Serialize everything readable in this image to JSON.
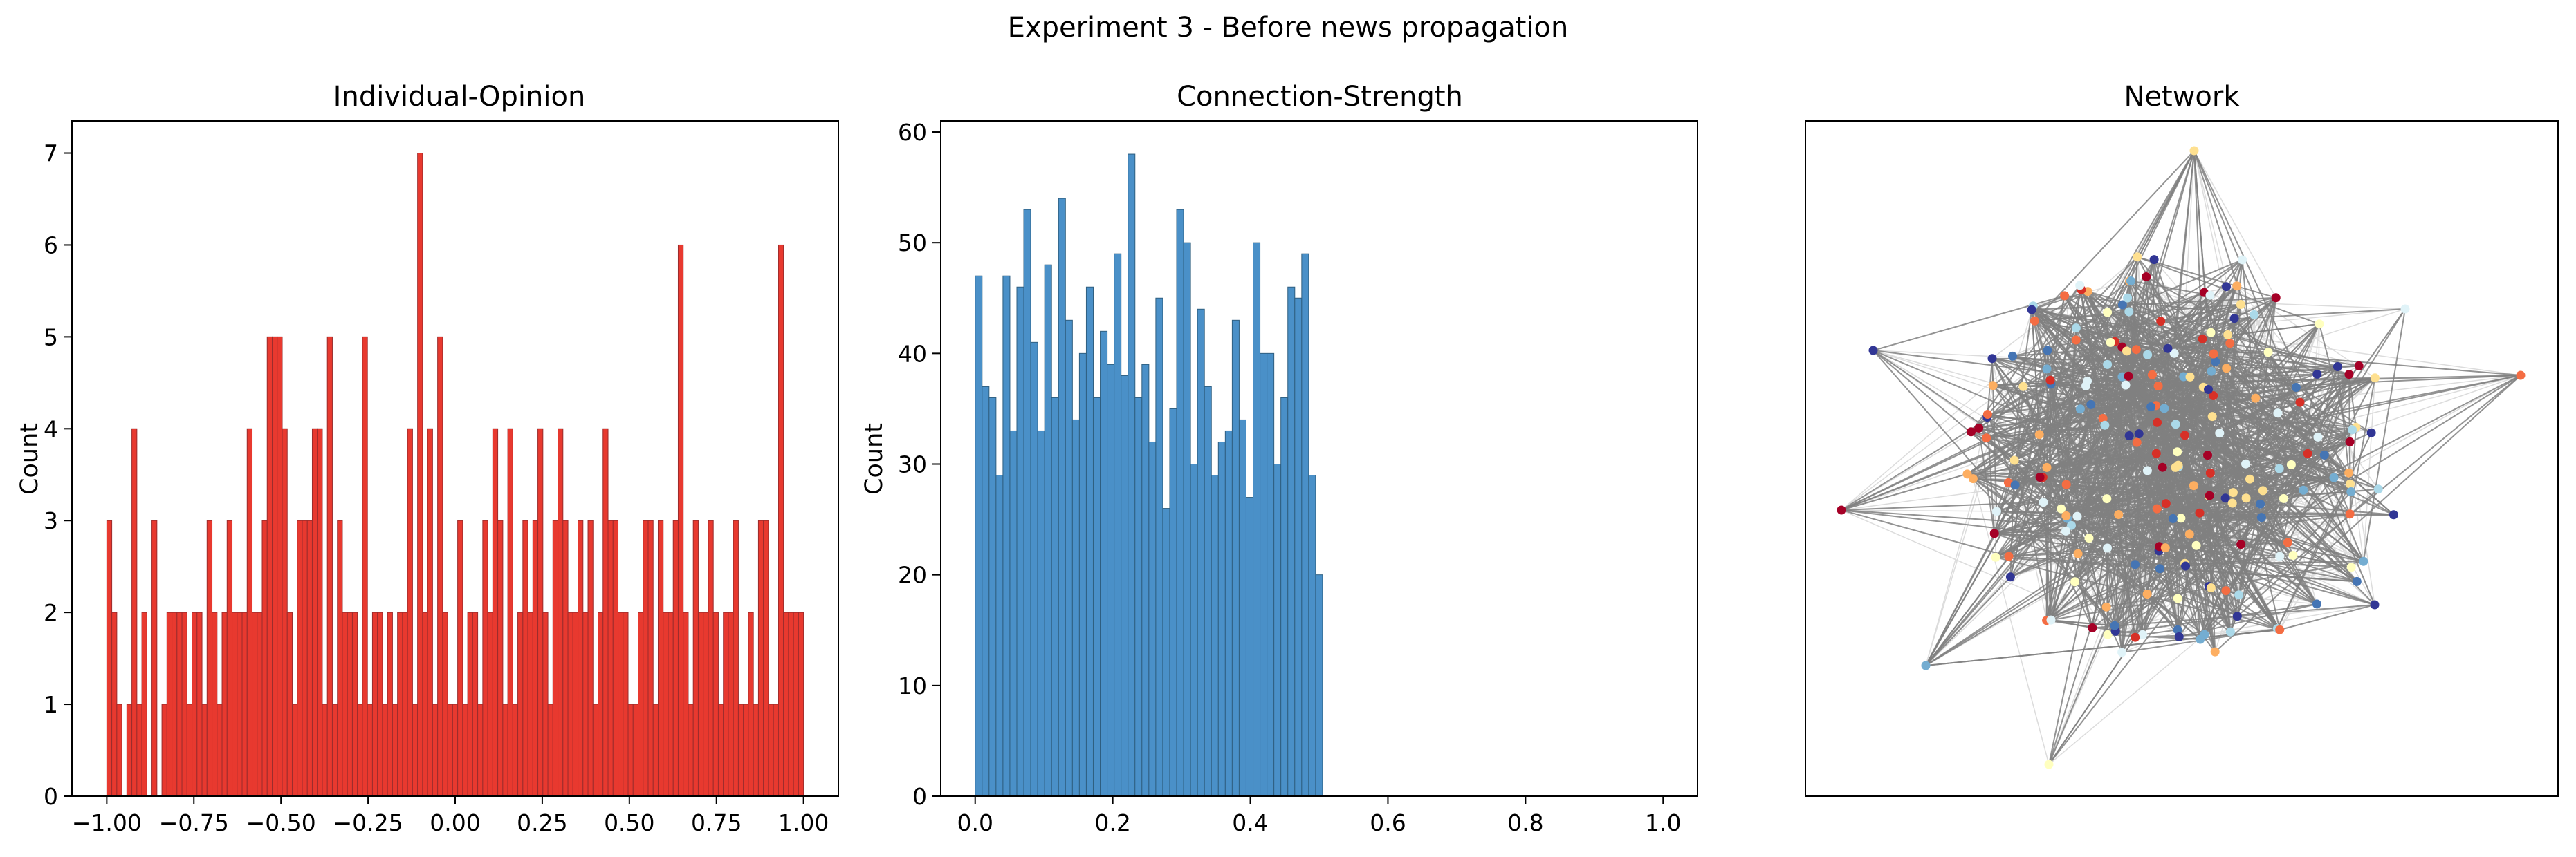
{
  "figure": {
    "suptitle": "Experiment 3 - Before news propagation"
  },
  "chart_data": [
    {
      "type": "bar",
      "title": "Individual-Opinion",
      "xlabel": "",
      "ylabel": "Count",
      "xlim": [
        -1.1,
        1.1
      ],
      "ylim": [
        0,
        7.35
      ],
      "xticks": [
        -1.0,
        -0.75,
        -0.5,
        -0.25,
        0.0,
        0.25,
        0.5,
        0.75,
        1.0
      ],
      "xtick_labels": [
        "−1.00",
        "−0.75",
        "−0.50",
        "−0.25",
        "0.00",
        "0.25",
        "0.50",
        "0.75",
        "1.00"
      ],
      "yticks": [
        0,
        1,
        2,
        3,
        4,
        5,
        6,
        7
      ],
      "ytick_labels": [
        "0",
        "1",
        "2",
        "3",
        "4",
        "5",
        "6",
        "7"
      ],
      "bin_range": [
        -1.0,
        1.0
      ],
      "values": [
        3,
        2,
        1,
        0,
        1,
        4,
        1,
        2,
        0,
        3,
        0,
        1,
        2,
        2,
        2,
        2,
        1,
        2,
        2,
        1,
        3,
        2,
        1,
        2,
        3,
        2,
        2,
        2,
        4,
        2,
        2,
        3,
        5,
        5,
        5,
        4,
        2,
        1,
        3,
        3,
        3,
        4,
        4,
        1,
        5,
        1,
        3,
        2,
        2,
        2,
        1,
        5,
        1,
        2,
        2,
        1,
        2,
        1,
        2,
        2,
        4,
        1,
        7,
        2,
        4,
        1,
        5,
        2,
        1,
        1,
        3,
        1,
        2,
        2,
        1,
        3,
        2,
        4,
        3,
        1,
        4,
        1,
        2,
        3,
        2,
        3,
        4,
        2,
        1,
        3,
        4,
        3,
        2,
        2,
        3,
        2,
        3,
        1,
        2,
        4,
        3,
        3,
        2,
        2,
        1,
        1,
        2,
        3,
        3,
        1,
        3,
        2,
        2,
        3,
        6,
        2,
        1,
        3,
        2,
        2,
        3,
        2,
        1,
        2,
        2,
        3,
        1,
        1,
        2,
        1,
        3,
        3,
        1,
        1,
        6,
        2,
        2,
        2,
        2
      ],
      "color": "#e8392f",
      "edge_color": "#9b2c2c",
      "grid": false
    },
    {
      "type": "bar",
      "title": "Connection-Strength",
      "xlabel": "",
      "ylabel": "Count",
      "xlim": [
        -0.05,
        1.05
      ],
      "ylim": [
        0,
        61
      ],
      "xticks": [
        0.0,
        0.2,
        0.4,
        0.6,
        0.8,
        1.0
      ],
      "xtick_labels": [
        "0.0",
        "0.2",
        "0.4",
        "0.6",
        "0.8",
        "1.0"
      ],
      "yticks": [
        0,
        10,
        20,
        30,
        40,
        50,
        60
      ],
      "ytick_labels": [
        "0",
        "10",
        "20",
        "30",
        "40",
        "50",
        "60"
      ],
      "bin_range": [
        0.0,
        0.505
      ],
      "values": [
        47,
        37,
        36,
        29,
        47,
        33,
        46,
        53,
        41,
        33,
        48,
        36,
        54,
        43,
        34,
        40,
        46,
        36,
        42,
        39,
        49,
        38,
        58,
        36,
        39,
        32,
        45,
        26,
        35,
        53,
        50,
        30,
        44,
        37,
        29,
        32,
        33,
        43,
        34,
        27,
        50,
        40,
        40,
        30,
        36,
        46,
        45,
        49,
        29,
        20
      ],
      "color": "#4a90c8",
      "edge_color": "#2f5f80",
      "grid": false
    }
  ],
  "network": {
    "title": "Network",
    "node_palette": [
      "#a50026",
      "#d73027",
      "#f46d43",
      "#fdae61",
      "#fee090",
      "#ffffbf",
      "#e0f3f8",
      "#abd9e9",
      "#74add1",
      "#4575b4",
      "#313695"
    ],
    "strong_edge_color": "#808080",
    "weak_edge_color": "#dcdcdc"
  }
}
